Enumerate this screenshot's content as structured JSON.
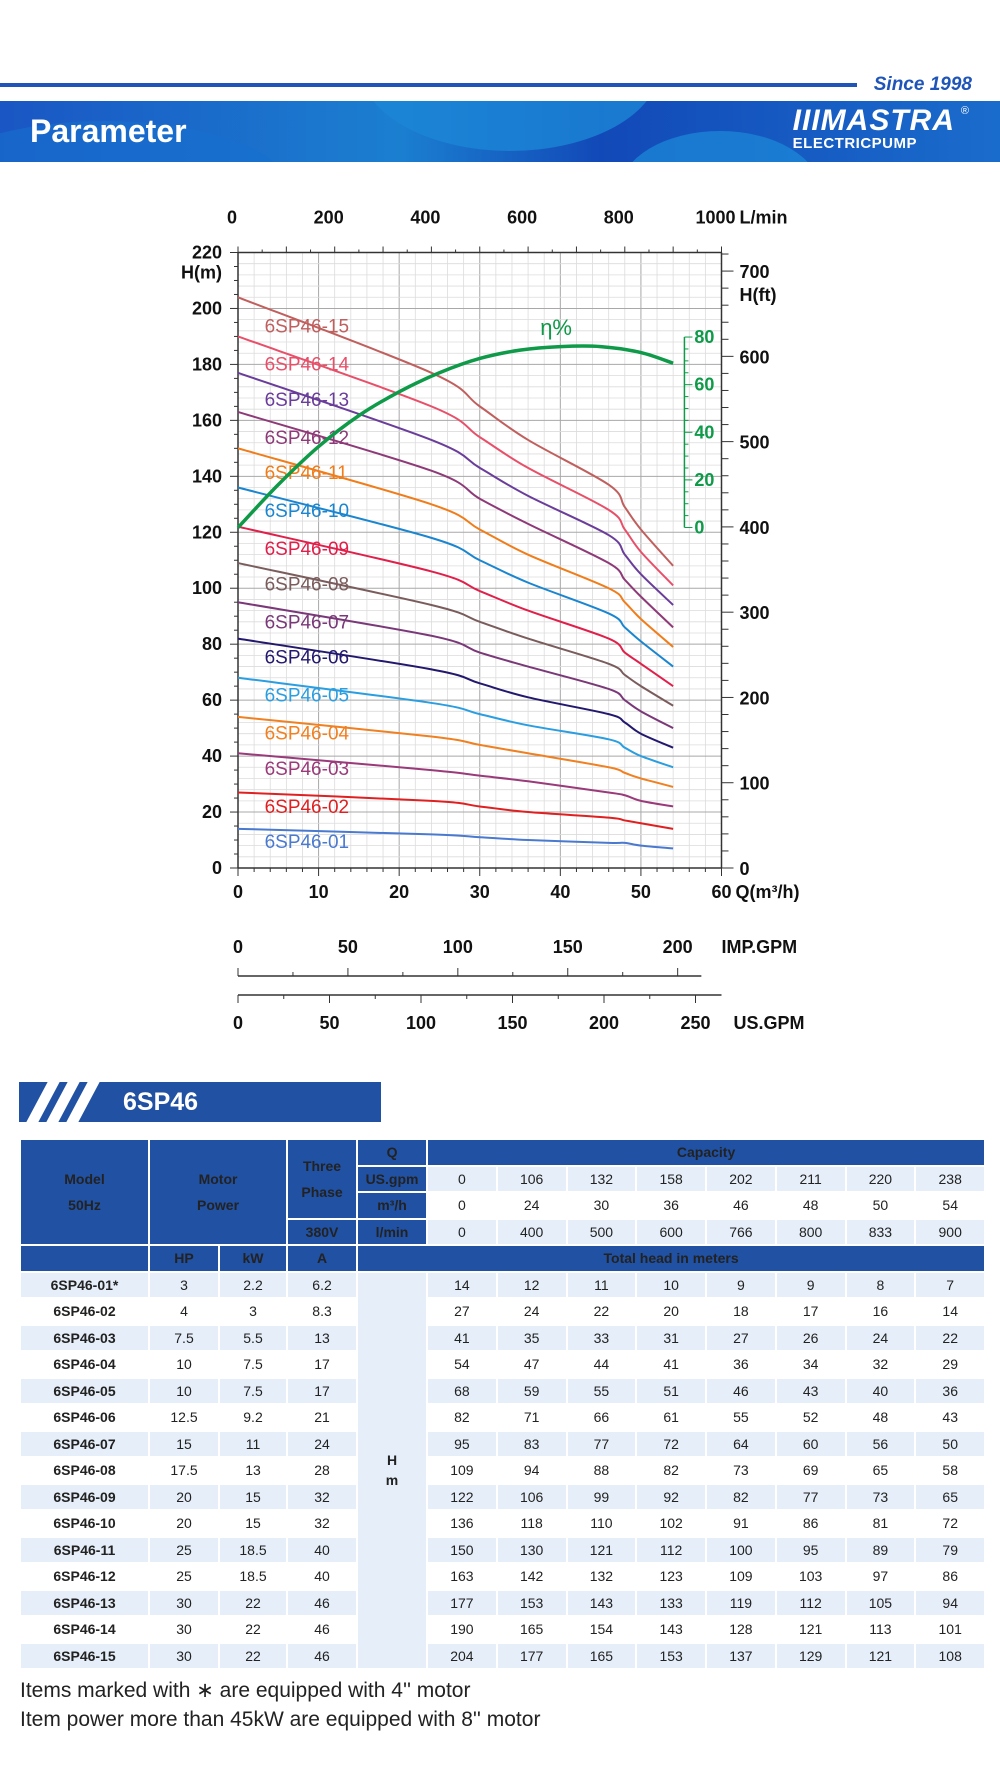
{
  "header": {
    "since": "Since 1998",
    "title": "Parameter",
    "logo_mark": "IIIMASTRA",
    "logo_sub": "ELECTRICPUMP",
    "logo_reg": "®"
  },
  "chart_data": {
    "type": "line",
    "x_label": "Q(m³/h)",
    "y_label": "H(m)",
    "y2_label": "H(ft)",
    "top_label": "L/min",
    "eff_label": "η%",
    "xlim": [
      0,
      60
    ],
    "ylim": [
      0,
      220
    ],
    "x_ticks": [
      0,
      10,
      20,
      30,
      40,
      50,
      60
    ],
    "y_ticks": [
      0,
      20,
      40,
      60,
      80,
      100,
      120,
      140,
      160,
      180,
      200,
      220
    ],
    "ft_ticks": [
      0,
      100,
      200,
      300,
      400,
      500,
      600,
      700
    ],
    "lmin_ticks": [
      0,
      200,
      400,
      600,
      800,
      1000
    ],
    "eff_ticks": [
      0,
      20,
      40,
      60,
      80
    ],
    "imp_gpm_label": "IMP.GPM",
    "imp_gpm_ticks": [
      0,
      50,
      100,
      150,
      200
    ],
    "us_gpm_label": "US.GPM",
    "us_gpm_ticks": [
      0,
      50,
      100,
      150,
      200,
      250
    ],
    "grid": true,
    "q": [
      0,
      24,
      30,
      36,
      46,
      48,
      50,
      54
    ],
    "series": [
      {
        "name": "6SP46-15",
        "color": "#c0605e",
        "values": [
          204,
          177,
          165,
          153,
          137,
          129,
          121,
          108
        ]
      },
      {
        "name": "6SP46-14",
        "color": "#e8506a",
        "values": [
          190,
          165,
          154,
          143,
          128,
          121,
          113,
          101
        ]
      },
      {
        "name": "6SP46-13",
        "color": "#6a3d9a",
        "values": [
          177,
          153,
          143,
          133,
          119,
          112,
          105,
          94
        ]
      },
      {
        "name": "6SP46-12",
        "color": "#8e3a78",
        "values": [
          163,
          142,
          132,
          123,
          109,
          103,
          97,
          86
        ]
      },
      {
        "name": "6SP46-11",
        "color": "#f07d1a",
        "values": [
          150,
          130,
          121,
          112,
          100,
          95,
          89,
          79
        ]
      },
      {
        "name": "6SP46-10",
        "color": "#1a86d0",
        "values": [
          136,
          118,
          110,
          102,
          91,
          86,
          81,
          72
        ]
      },
      {
        "name": "6SP46-09",
        "color": "#e0204a",
        "values": [
          122,
          106,
          99,
          92,
          82,
          77,
          73,
          65
        ]
      },
      {
        "name": "6SP46-08",
        "color": "#7a5c5c",
        "values": [
          109,
          94,
          88,
          82,
          73,
          69,
          65,
          58
        ]
      },
      {
        "name": "6SP46-07",
        "color": "#7a3878",
        "values": [
          95,
          83,
          77,
          72,
          64,
          60,
          56,
          50
        ]
      },
      {
        "name": "6SP46-06",
        "color": "#22186e",
        "values": [
          82,
          71,
          66,
          61,
          55,
          52,
          48,
          43
        ]
      },
      {
        "name": "6SP46-05",
        "color": "#2a9ee0",
        "values": [
          68,
          59,
          55,
          51,
          46,
          43,
          40,
          36
        ]
      },
      {
        "name": "6SP46-04",
        "color": "#f08020",
        "values": [
          54,
          47,
          44,
          41,
          36,
          34,
          32,
          29
        ]
      },
      {
        "name": "6SP46-03",
        "color": "#9a3a7a",
        "values": [
          41,
          35,
          33,
          31,
          27,
          26,
          24,
          22
        ]
      },
      {
        "name": "6SP46-02",
        "color": "#e02020",
        "values": [
          27,
          24,
          22,
          20,
          18,
          17,
          16,
          14
        ]
      },
      {
        "name": "6SP46-01",
        "color": "#4a7ad0",
        "values": [
          14,
          12,
          11,
          10,
          9,
          9,
          8,
          7
        ]
      }
    ],
    "efficiency": {
      "color": "#0e9a48",
      "q": [
        0,
        5,
        10,
        15,
        20,
        25,
        30,
        35,
        40,
        45,
        50,
        54
      ],
      "values": [
        0,
        18,
        34,
        47,
        57,
        65,
        71,
        74.5,
        76,
        76,
        73.5,
        69
      ]
    }
  },
  "table": {
    "series_name": "6SP46",
    "head": {
      "model": "Model",
      "hz": "50Hz",
      "motor": "Motor",
      "power": "Power",
      "three": "Three",
      "phase": "Phase",
      "volt": "380V",
      "q": "Q",
      "capacity": "Capacity",
      "usgpm": "US.gpm",
      "m3h": "m³/h",
      "lmin": "l/min",
      "hp": "HP",
      "kw": "kW",
      "a": "A",
      "total_head": "Total head in meters",
      "h": "H",
      "m": "m"
    },
    "usgpm": [
      "0",
      "106",
      "132",
      "158",
      "202",
      "211",
      "220",
      "238"
    ],
    "m3h": [
      "0",
      "24",
      "30",
      "36",
      "46",
      "48",
      "50",
      "54"
    ],
    "lmin": [
      "0",
      "400",
      "500",
      "600",
      "766",
      "800",
      "833",
      "900"
    ],
    "rows": [
      {
        "model": "6SP46-01*",
        "hp": "3",
        "kw": "2.2",
        "a": "6.2",
        "h": [
          "14",
          "12",
          "11",
          "10",
          "9",
          "9",
          "8",
          "7"
        ]
      },
      {
        "model": "6SP46-02",
        "hp": "4",
        "kw": "3",
        "a": "8.3",
        "h": [
          "27",
          "24",
          "22",
          "20",
          "18",
          "17",
          "16",
          "14"
        ]
      },
      {
        "model": "6SP46-03",
        "hp": "7.5",
        "kw": "5.5",
        "a": "13",
        "h": [
          "41",
          "35",
          "33",
          "31",
          "27",
          "26",
          "24",
          "22"
        ]
      },
      {
        "model": "6SP46-04",
        "hp": "10",
        "kw": "7.5",
        "a": "17",
        "h": [
          "54",
          "47",
          "44",
          "41",
          "36",
          "34",
          "32",
          "29"
        ]
      },
      {
        "model": "6SP46-05",
        "hp": "10",
        "kw": "7.5",
        "a": "17",
        "h": [
          "68",
          "59",
          "55",
          "51",
          "46",
          "43",
          "40",
          "36"
        ]
      },
      {
        "model": "6SP46-06",
        "hp": "12.5",
        "kw": "9.2",
        "a": "21",
        "h": [
          "82",
          "71",
          "66",
          "61",
          "55",
          "52",
          "48",
          "43"
        ]
      },
      {
        "model": "6SP46-07",
        "hp": "15",
        "kw": "11",
        "a": "24",
        "h": [
          "95",
          "83",
          "77",
          "72",
          "64",
          "60",
          "56",
          "50"
        ]
      },
      {
        "model": "6SP46-08",
        "hp": "17.5",
        "kw": "13",
        "a": "28",
        "h": [
          "109",
          "94",
          "88",
          "82",
          "73",
          "69",
          "65",
          "58"
        ]
      },
      {
        "model": "6SP46-09",
        "hp": "20",
        "kw": "15",
        "a": "32",
        "h": [
          "122",
          "106",
          "99",
          "92",
          "82",
          "77",
          "73",
          "65"
        ]
      },
      {
        "model": "6SP46-10",
        "hp": "20",
        "kw": "15",
        "a": "32",
        "h": [
          "136",
          "118",
          "110",
          "102",
          "91",
          "86",
          "81",
          "72"
        ]
      },
      {
        "model": "6SP46-11",
        "hp": "25",
        "kw": "18.5",
        "a": "40",
        "h": [
          "150",
          "130",
          "121",
          "112",
          "100",
          "95",
          "89",
          "79"
        ]
      },
      {
        "model": "6SP46-12",
        "hp": "25",
        "kw": "18.5",
        "a": "40",
        "h": [
          "163",
          "142",
          "132",
          "123",
          "109",
          "103",
          "97",
          "86"
        ]
      },
      {
        "model": "6SP46-13",
        "hp": "30",
        "kw": "22",
        "a": "46",
        "h": [
          "177",
          "153",
          "143",
          "133",
          "119",
          "112",
          "105",
          "94"
        ]
      },
      {
        "model": "6SP46-14",
        "hp": "30",
        "kw": "22",
        "a": "46",
        "h": [
          "190",
          "165",
          "154",
          "143",
          "128",
          "121",
          "113",
          "101"
        ]
      },
      {
        "model": "6SP46-15",
        "hp": "30",
        "kw": "22",
        "a": "46",
        "h": [
          "204",
          "177",
          "165",
          "153",
          "137",
          "129",
          "121",
          "108"
        ]
      }
    ]
  },
  "notes": [
    "Items marked with  ∗  are equipped with 4'' motor",
    "Item power more than 45kW are equipped with 8'' motor"
  ]
}
